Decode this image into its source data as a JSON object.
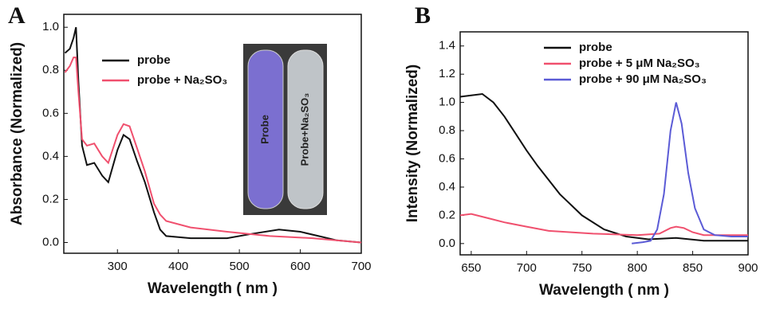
{
  "chart_data": [
    {
      "type": "line",
      "panel_label": "A",
      "xlabel": "Wavelength ( nm )",
      "ylabel": "Absorbance (Normalized)",
      "xlim": [
        212,
        700
      ],
      "ylim": [
        -0.05,
        1.06
      ],
      "xticks": [
        300,
        400,
        500,
        600,
        700
      ],
      "yticks": [
        {
          "value": 0,
          "label": "0.0"
        },
        0.2,
        0.4,
        0.6,
        0.8,
        {
          "value": 1,
          "label": "1.0"
        }
      ],
      "inset_labels": [
        "Probe",
        "Probe+Na₂SO₃"
      ],
      "series": [
        {
          "name": "probe",
          "color": "#111111",
          "x": [
            214,
            222,
            228,
            232,
            236,
            242,
            250,
            262,
            275,
            285,
            300,
            310,
            320,
            332,
            345,
            360,
            370,
            380,
            420,
            480,
            520,
            565,
            600,
            630,
            660,
            700
          ],
          "values": [
            0.88,
            0.9,
            0.95,
            1.0,
            0.75,
            0.45,
            0.36,
            0.37,
            0.31,
            0.28,
            0.43,
            0.5,
            0.48,
            0.38,
            0.28,
            0.14,
            0.06,
            0.03,
            0.02,
            0.02,
            0.04,
            0.06,
            0.05,
            0.03,
            0.01,
            0.0
          ]
        },
        {
          "name": "probe + Na₂SO₃",
          "color": "#f0506e",
          "x": [
            214,
            222,
            228,
            232,
            236,
            242,
            250,
            262,
            275,
            285,
            300,
            310,
            320,
            332,
            345,
            360,
            370,
            380,
            420,
            480,
            550,
            620,
            700
          ],
          "values": [
            0.79,
            0.82,
            0.86,
            0.86,
            0.7,
            0.48,
            0.45,
            0.46,
            0.4,
            0.37,
            0.5,
            0.55,
            0.54,
            0.44,
            0.33,
            0.18,
            0.13,
            0.1,
            0.07,
            0.05,
            0.03,
            0.02,
            0.0
          ]
        }
      ]
    },
    {
      "type": "line",
      "panel_label": "B",
      "xlabel": "Wavelength  ( nm )",
      "ylabel": "Intensity (Normalized)",
      "xlim": [
        640,
        900
      ],
      "ylim": [
        -0.08,
        1.5
      ],
      "xticks": [
        650,
        700,
        750,
        800,
        850,
        900
      ],
      "yticks": [
        {
          "value": 0,
          "label": "0.0"
        },
        0.2,
        0.4,
        0.6,
        0.8,
        {
          "value": 1,
          "label": "1.0"
        },
        1.2,
        1.4
      ],
      "series": [
        {
          "name": "probe",
          "color": "#111111",
          "x": [
            640,
            650,
            660,
            670,
            680,
            690,
            700,
            710,
            730,
            750,
            770,
            790,
            810,
            835,
            860,
            900
          ],
          "values": [
            1.04,
            1.05,
            1.06,
            1.0,
            0.9,
            0.78,
            0.66,
            0.55,
            0.35,
            0.2,
            0.1,
            0.05,
            0.03,
            0.04,
            0.02,
            0.02
          ]
        },
        {
          "name": "probe +  5 μM Na₂SO₃",
          "color": "#f0506e",
          "x": [
            640,
            650,
            665,
            680,
            700,
            720,
            760,
            800,
            820,
            830,
            835,
            842,
            850,
            860,
            900
          ],
          "values": [
            0.2,
            0.21,
            0.18,
            0.15,
            0.12,
            0.09,
            0.07,
            0.06,
            0.07,
            0.11,
            0.12,
            0.11,
            0.08,
            0.06,
            0.06
          ]
        },
        {
          "name": "probe +  90 μM Na₂SO₃",
          "color": "#5b5bd6",
          "x": [
            795,
            805,
            812,
            818,
            824,
            830,
            835,
            840,
            846,
            852,
            860,
            870,
            885,
            900
          ],
          "values": [
            0.0,
            0.01,
            0.02,
            0.1,
            0.35,
            0.8,
            1.0,
            0.85,
            0.5,
            0.25,
            0.1,
            0.06,
            0.05,
            0.05
          ]
        }
      ]
    }
  ]
}
